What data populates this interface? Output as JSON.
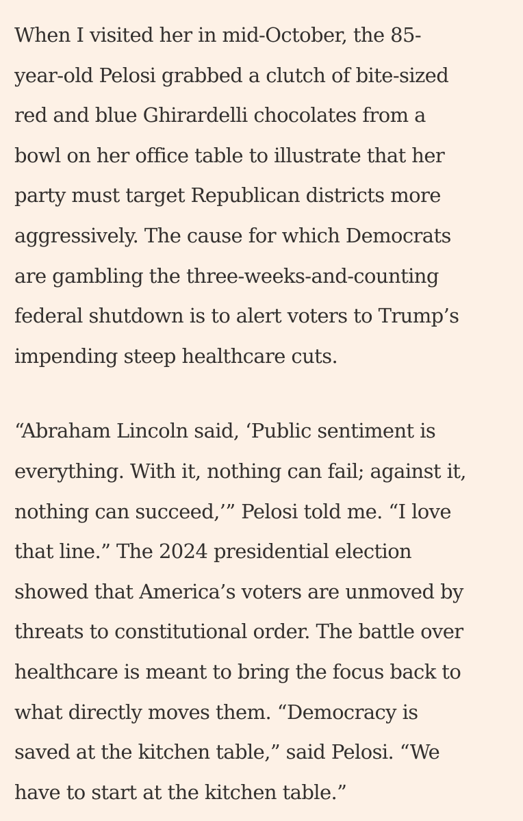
{
  "article": {
    "paragraphs": [
      {
        "lines": [
          "When I visited her in mid-October, the 85-",
          "year-old Pelosi grabbed a clutch of bite-sized",
          "red and blue Ghirardelli chocolates from a",
          "bowl on her office table to illustrate that her",
          "party must target Republican districts more",
          "aggressively. The cause for which Democrats",
          "are gambling the three-weeks-and-counting",
          "federal shutdown is to alert voters to Trump’s",
          "impending steep healthcare cuts."
        ]
      },
      {
        "lines": [
          "“Abraham Lincoln said, ‘Public sentiment is",
          "everything. With it, nothing can fail; against it,",
          "nothing can succeed,’” Pelosi told me. “I love",
          "that line.” The 2024 presidential election",
          "showed that America’s voters are unmoved by",
          "threats to constitutional order. The battle over",
          "healthcare is meant to bring the focus back to",
          "what directly moves them. “Democracy is",
          "saved at the kitchen table,” said Pelosi. “We",
          "have to start at the kitchen table.”"
        ]
      }
    ]
  }
}
